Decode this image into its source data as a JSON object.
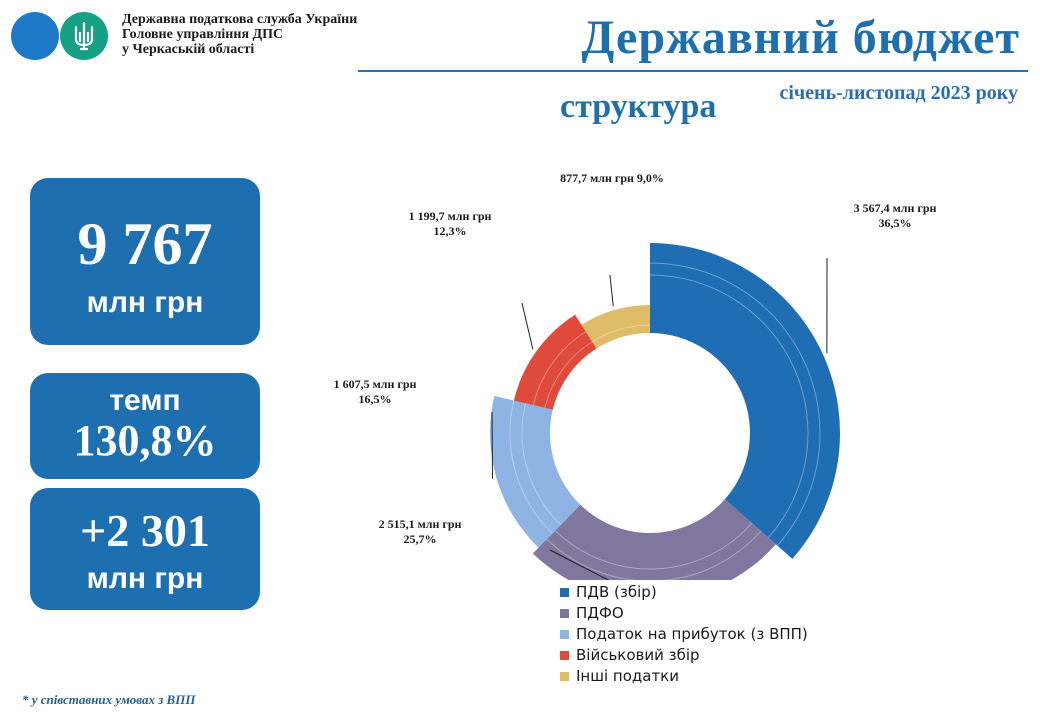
{
  "header": {
    "org_line1": "Державна податкова служба України",
    "org_line2": "Головне управління ДПС",
    "org_line3": "у Черкаській області",
    "title": "Державний бюджет",
    "subtitle": "структура",
    "period": "січень-листопад  2023 року",
    "logo_symbol": "trident-icon"
  },
  "kpis": {
    "total_value": "9 767",
    "total_unit": "млн грн",
    "rate_label": "темп",
    "rate_value": "130,8%",
    "delta_value": "+2 301",
    "delta_unit": "млн грн"
  },
  "footnote": "* у співставних умовах з ВПП",
  "chart_data": {
    "type": "pie",
    "style": "doughnut",
    "unit": "млн грн",
    "legend_position": "bottom",
    "categories": [
      "ПДВ (збір)",
      "ПДФО",
      "Податок на прибуток (з ВПП)",
      "Військовий збір",
      "Інші податки"
    ],
    "values": [
      3567.4,
      2515.1,
      1607.5,
      1199.7,
      877.7
    ],
    "percents": [
      36.5,
      25.7,
      16.5,
      12.3,
      9.0
    ],
    "value_labels": [
      "3 567,4 млн грн",
      "2 515,1 млн грн",
      "1 607,5 млн грн",
      "1 199,7 млн грн",
      "877,7 млн грн"
    ],
    "percent_labels": [
      "36,5%",
      "25,7%",
      "16,5%",
      "12,3%",
      "9,0%"
    ],
    "colors": [
      "#1f6db3",
      "#7f779d",
      "#8db4e2",
      "#e04a3a",
      "#dfbd68"
    ]
  }
}
